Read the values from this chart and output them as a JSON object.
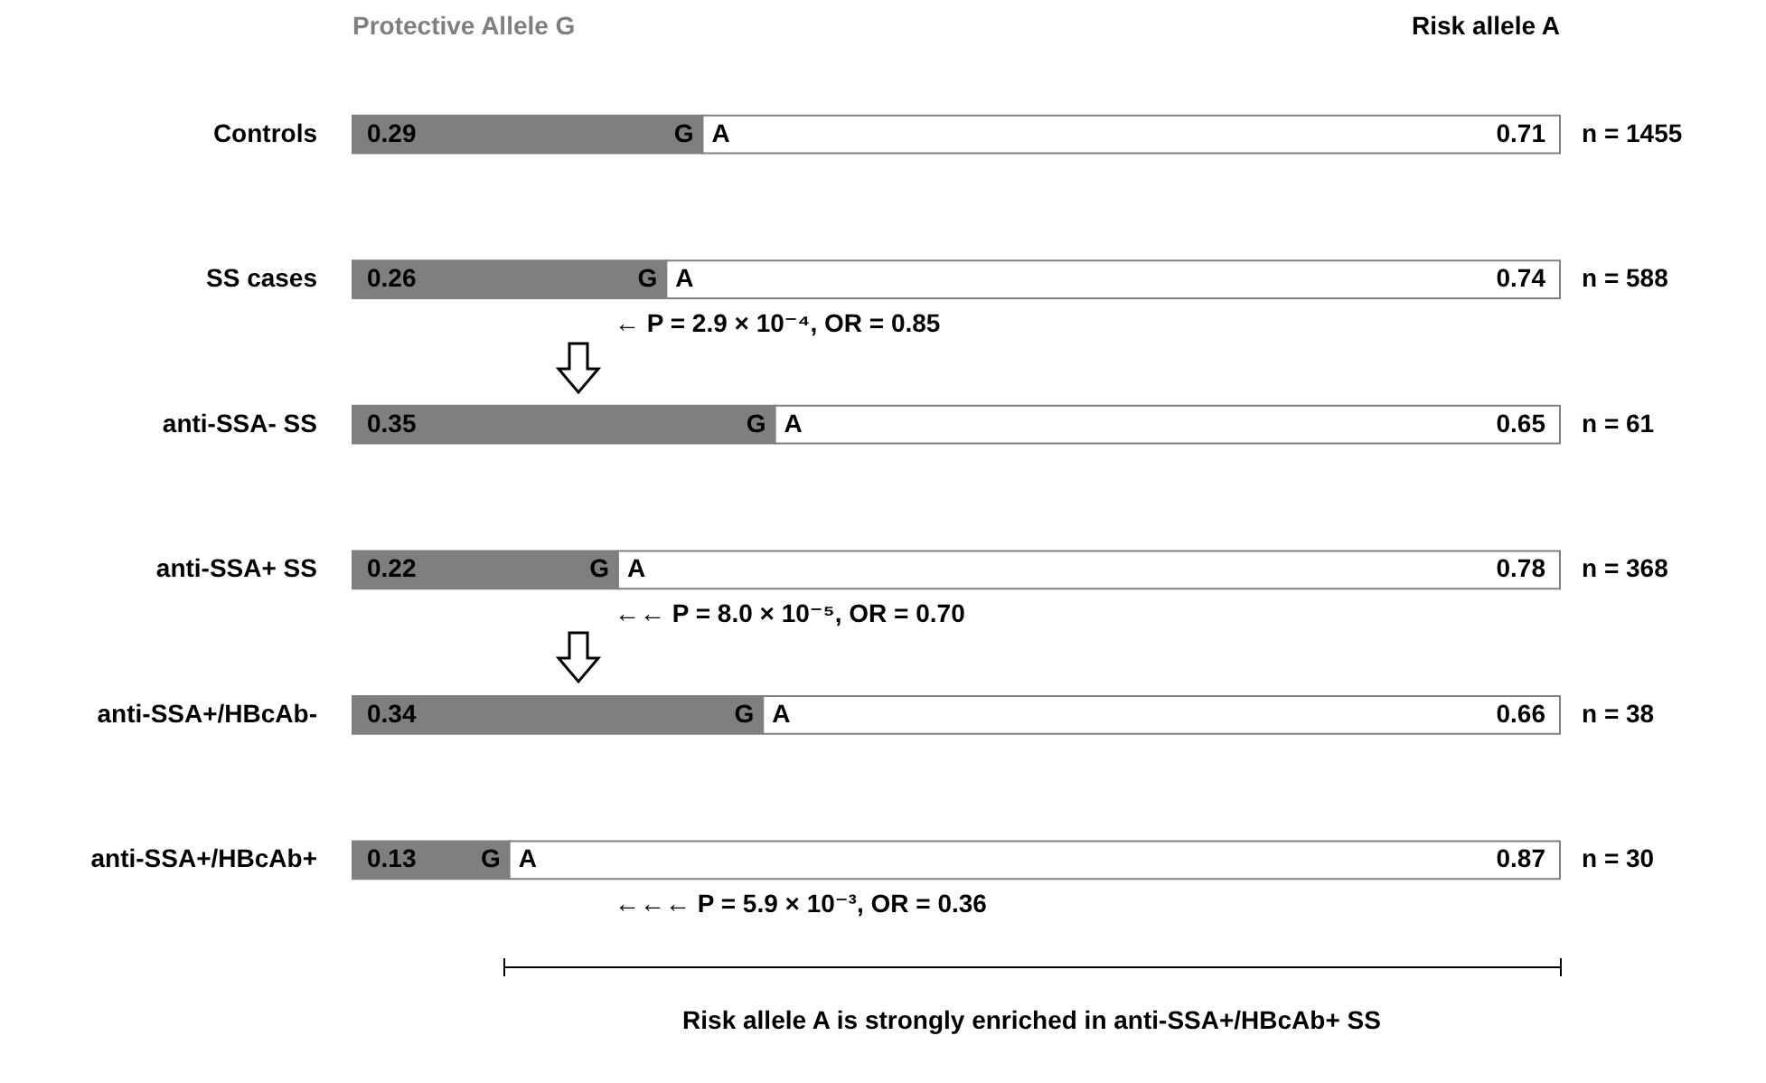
{
  "chart_data": {
    "type": "bar",
    "orientation": "horizontal",
    "stacked": true,
    "data_labels": true,
    "tick_labels": "y",
    "xlim": [
      0,
      1
    ],
    "categories": [
      "Controls",
      "SS cases",
      "anti-SSA- SS",
      "anti-SSA+ SS",
      "anti-SSA+/HBcAb-",
      "anti-SSA+/HBcAb+"
    ],
    "series": [
      {
        "name": "Protective Allele G",
        "color": "#7f7f7f",
        "values": [
          0.29,
          0.26,
          0.35,
          0.22,
          0.34,
          0.13
        ]
      },
      {
        "name": "Risk allele A",
        "color": "#ffffff",
        "values": [
          0.71,
          0.74,
          0.65,
          0.78,
          0.66,
          0.87
        ]
      }
    ],
    "annotations": [
      {
        "text": "G",
        "x": 0.29,
        "y": "Controls"
      },
      {
        "text": "A",
        "x": 0.29,
        "y": "Controls"
      },
      {
        "text": "G",
        "x": 0.26,
        "y": "SS cases"
      },
      {
        "text": "A",
        "x": 0.26,
        "y": "SS cases"
      },
      {
        "text": "G",
        "x": 0.35,
        "y": "anti-SSA- SS"
      },
      {
        "text": "A",
        "x": 0.35,
        "y": "anti-SSA- SS"
      },
      {
        "text": "G",
        "x": 0.22,
        "y": "anti-SSA+ SS"
      },
      {
        "text": "A",
        "x": 0.22,
        "y": "anti-SSA+ SS"
      },
      {
        "text": "G",
        "x": 0.34,
        "y": "anti-SSA+/HBcAb-"
      },
      {
        "text": "A",
        "x": 0.34,
        "y": "anti-SSA+/HBcAb-"
      },
      {
        "text": "G",
        "x": 0.13,
        "y": "anti-SSA+/HBcAb+"
      },
      {
        "text": "A",
        "x": 0.13,
        "y": "anti-SSA+/HBcAb+"
      },
      "n = 1455",
      "n = 588",
      "n = 61",
      "n = 368",
      "n = 38",
      "n = 30",
      "← P = 2.9 × 10⁻⁴, OR = 0.85",
      "←← P = 8.0 × 10⁻⁵, OR = 0.70",
      "←←← P = 5.9 × 10⁻³, OR = 0.36",
      "Risk allele A is strongly enriched in anti-SSA+/HBcAb+ SS"
    ]
  }
}
